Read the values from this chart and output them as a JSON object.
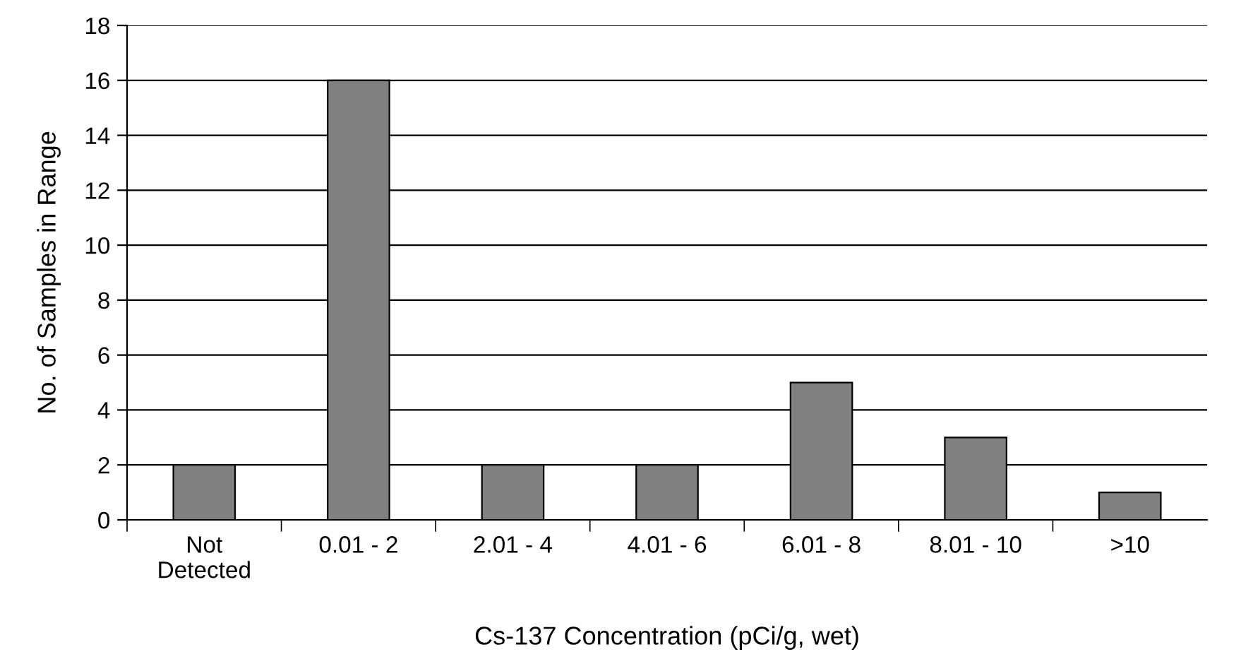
{
  "chart_data": {
    "type": "bar",
    "xlabel": "Cs-137 Concentration (pCi/g, wet)",
    "ylabel": "No. of Samples in Range",
    "categories": [
      "Not\nDetected",
      "0.01 - 2",
      "2.01 - 4",
      "4.01 - 6",
      "6.01 - 8",
      "8.01 - 10",
      ">10"
    ],
    "values": [
      2,
      16,
      2,
      2,
      5,
      3,
      1
    ],
    "color": "#808080",
    "ylim": [
      0,
      18
    ],
    "yticks": [
      0,
      2,
      4,
      6,
      8,
      10,
      12,
      14,
      16,
      18
    ],
    "grid": "y"
  }
}
